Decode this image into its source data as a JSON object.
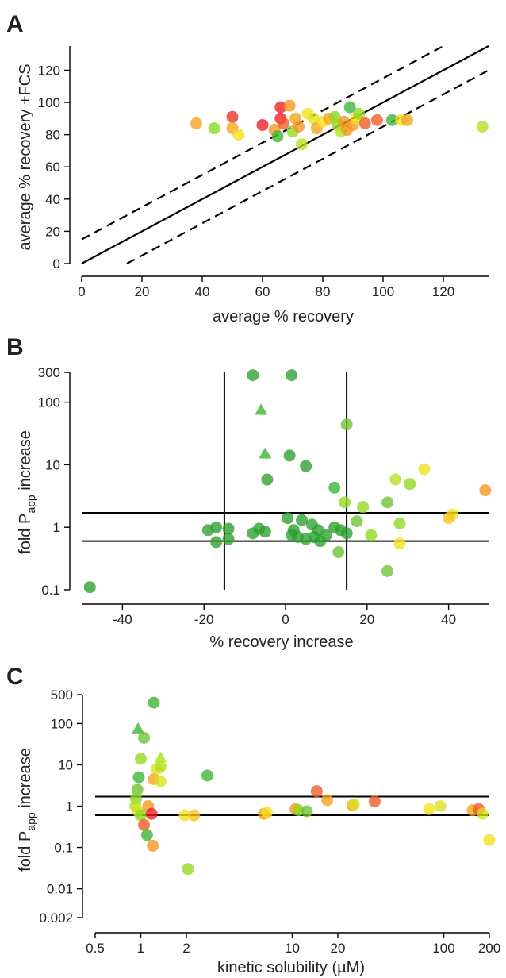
{
  "chart_data": [
    {
      "panel": "A",
      "type": "scatter",
      "xlabel": "average % recovery",
      "ylabel": "average % recovery +FCS",
      "xlim": [
        0,
        135
      ],
      "ylim": [
        0,
        135
      ],
      "xticks": [
        0,
        20,
        40,
        60,
        80,
        100,
        120
      ],
      "yticks": [
        0,
        20,
        40,
        60,
        80,
        100,
        120
      ],
      "lines": [
        {
          "style": "solid",
          "x": [
            0,
            135
          ],
          "y": [
            0,
            135
          ]
        },
        {
          "style": "dashed",
          "x": [
            0,
            120
          ],
          "y": [
            15,
            135
          ]
        },
        {
          "style": "dashed",
          "x": [
            15,
            135
          ],
          "y": [
            0,
            120
          ]
        }
      ],
      "points": [
        {
          "x": 38,
          "y": 87,
          "color": "#f7a21b"
        },
        {
          "x": 44,
          "y": 84,
          "color": "#8ed81e"
        },
        {
          "x": 50,
          "y": 91,
          "color": "#ee3124"
        },
        {
          "x": 50,
          "y": 84,
          "color": "#f7a21b"
        },
        {
          "x": 52,
          "y": 80,
          "color": "#f4e21a"
        },
        {
          "x": 60,
          "y": 86,
          "color": "#ee1c24"
        },
        {
          "x": 64,
          "y": 83,
          "color": "#f7941d"
        },
        {
          "x": 65,
          "y": 79,
          "color": "#3cb534"
        },
        {
          "x": 66,
          "y": 97,
          "color": "#ee1c24"
        },
        {
          "x": 66,
          "y": 90,
          "color": "#ee1c24"
        },
        {
          "x": 67,
          "y": 87,
          "color": "#f15a24"
        },
        {
          "x": 69,
          "y": 98,
          "color": "#f7941d"
        },
        {
          "x": 70,
          "y": 82,
          "color": "#8ed81e"
        },
        {
          "x": 71,
          "y": 90,
          "color": "#f7a21b"
        },
        {
          "x": 72,
          "y": 85,
          "color": "#f7941d"
        },
        {
          "x": 73,
          "y": 74,
          "color": "#b5e01e"
        },
        {
          "x": 75,
          "y": 93,
          "color": "#f4e21a"
        },
        {
          "x": 77,
          "y": 90,
          "color": "#d9e31c"
        },
        {
          "x": 78,
          "y": 84,
          "color": "#f7a21b"
        },
        {
          "x": 80,
          "y": 88,
          "color": "#f4e21a"
        },
        {
          "x": 82,
          "y": 90,
          "color": "#f7a21b"
        },
        {
          "x": 84,
          "y": 91,
          "color": "#8ed81e"
        },
        {
          "x": 85,
          "y": 86,
          "color": "#8ed81e"
        },
        {
          "x": 86,
          "y": 82,
          "color": "#b5e01e"
        },
        {
          "x": 87,
          "y": 88,
          "color": "#f7941d"
        },
        {
          "x": 88,
          "y": 83,
          "color": "#f7941d"
        },
        {
          "x": 89,
          "y": 97,
          "color": "#3cb534"
        },
        {
          "x": 90,
          "y": 86,
          "color": "#f7941d"
        },
        {
          "x": 91,
          "y": 90,
          "color": "#f4e21a"
        },
        {
          "x": 92,
          "y": 93,
          "color": "#8ed81e"
        },
        {
          "x": 94,
          "y": 87,
          "color": "#f15a24"
        },
        {
          "x": 98,
          "y": 89,
          "color": "#f15a24"
        },
        {
          "x": 103,
          "y": 89,
          "color": "#3cb534"
        },
        {
          "x": 106,
          "y": 89,
          "color": "#f4e21a"
        },
        {
          "x": 108,
          "y": 89,
          "color": "#f7a21b"
        },
        {
          "x": 133,
          "y": 85,
          "color": "#b5e01e"
        }
      ]
    },
    {
      "panel": "B",
      "type": "scatter",
      "xlabel": "% recovery increase",
      "ylabel": "fold P",
      "ylabel_sub": "app",
      "ylabel_rest": " increase",
      "yscale": "log",
      "xlim": [
        -50,
        50
      ],
      "ylim": [
        0.1,
        300
      ],
      "xticks": [
        -40,
        -20,
        0,
        20,
        40
      ],
      "yticks": [
        {
          "v": 0.1,
          "label": "0.1"
        },
        {
          "v": 1,
          "label": "1"
        },
        {
          "v": 10,
          "label": "10"
        },
        {
          "v": 100,
          "label": "100"
        },
        {
          "v": 300,
          "label": "300"
        }
      ],
      "vlines": [
        -15,
        15
      ],
      "hlines": [
        1.7,
        0.6
      ],
      "points": [
        {
          "x": -48,
          "y": 0.11,
          "color": "#2ca02c",
          "shape": "circle"
        },
        {
          "x": -8,
          "y": 270,
          "color": "#2ca02c",
          "shape": "circle"
        },
        {
          "x": 1.5,
          "y": 270,
          "color": "#2ca02c",
          "shape": "circle"
        },
        {
          "x": -6,
          "y": 75,
          "color": "#3cb534",
          "shape": "triangle"
        },
        {
          "x": -5,
          "y": 15,
          "color": "#3cb534",
          "shape": "triangle"
        },
        {
          "x": 1,
          "y": 14,
          "color": "#2ca02c",
          "shape": "circle"
        },
        {
          "x": 15,
          "y": 44,
          "color": "#6cc230",
          "shape": "circle"
        },
        {
          "x": 5,
          "y": 9.5,
          "color": "#2ca02c",
          "shape": "circle"
        },
        {
          "x": -4.5,
          "y": 5.8,
          "color": "#2ca02c",
          "shape": "circle"
        },
        {
          "x": 12,
          "y": 4.3,
          "color": "#3cb534",
          "shape": "circle"
        },
        {
          "x": 34,
          "y": 8.5,
          "color": "#f4e21a",
          "shape": "circle"
        },
        {
          "x": 49,
          "y": 3.9,
          "color": "#f7941d",
          "shape": "circle"
        },
        {
          "x": 27,
          "y": 5.8,
          "color": "#b5e01e",
          "shape": "circle"
        },
        {
          "x": 30.5,
          "y": 4.9,
          "color": "#8ed81e",
          "shape": "circle"
        },
        {
          "x": 14.5,
          "y": 2.5,
          "color": "#8ed81e",
          "shape": "circle"
        },
        {
          "x": 19,
          "y": 2.1,
          "color": "#8ed81e",
          "shape": "circle"
        },
        {
          "x": 25,
          "y": 2.5,
          "color": "#6cc230",
          "shape": "circle"
        },
        {
          "x": 17.5,
          "y": 1.25,
          "color": "#6cc230",
          "shape": "circle"
        },
        {
          "x": 41,
          "y": 1.6,
          "color": "#f4e21a",
          "shape": "circle"
        },
        {
          "x": 40,
          "y": 1.4,
          "color": "#f7c21b",
          "shape": "circle"
        },
        {
          "x": 28,
          "y": 1.15,
          "color": "#8ed81e",
          "shape": "circle"
        },
        {
          "x": 28,
          "y": 0.55,
          "color": "#f4e21a",
          "shape": "circle"
        },
        {
          "x": 21,
          "y": 0.75,
          "color": "#8ed81e",
          "shape": "circle"
        },
        {
          "x": 25,
          "y": 0.2,
          "color": "#6cc230",
          "shape": "circle"
        },
        {
          "x": 13,
          "y": 0.4,
          "color": "#6cc230",
          "shape": "circle"
        },
        {
          "x": -19,
          "y": 0.9,
          "color": "#2ca02c",
          "shape": "circle"
        },
        {
          "x": -17,
          "y": 1.0,
          "color": "#2ca02c",
          "shape": "circle"
        },
        {
          "x": -14,
          "y": 0.95,
          "color": "#2ca02c",
          "shape": "circle"
        },
        {
          "x": -17,
          "y": 0.58,
          "color": "#2ca02c",
          "shape": "circle"
        },
        {
          "x": -14,
          "y": 0.65,
          "color": "#2ca02c",
          "shape": "circle"
        },
        {
          "x": -8,
          "y": 0.8,
          "color": "#2ca02c",
          "shape": "circle"
        },
        {
          "x": -6.5,
          "y": 0.95,
          "color": "#2ca02c",
          "shape": "circle"
        },
        {
          "x": -5,
          "y": 0.85,
          "color": "#2ca02c",
          "shape": "circle"
        },
        {
          "x": 0.5,
          "y": 1.4,
          "color": "#2ca02c",
          "shape": "circle"
        },
        {
          "x": 2,
          "y": 0.9,
          "color": "#2ca02c",
          "shape": "circle"
        },
        {
          "x": 4,
          "y": 1.3,
          "color": "#2ca02c",
          "shape": "circle"
        },
        {
          "x": 1.5,
          "y": 0.75,
          "color": "#2ca02c",
          "shape": "circle"
        },
        {
          "x": 3,
          "y": 0.7,
          "color": "#2ca02c",
          "shape": "circle"
        },
        {
          "x": 5,
          "y": 0.65,
          "color": "#2ca02c",
          "shape": "circle"
        },
        {
          "x": 6.5,
          "y": 1.1,
          "color": "#2ca02c",
          "shape": "circle"
        },
        {
          "x": 8,
          "y": 0.9,
          "color": "#2ca02c",
          "shape": "circle"
        },
        {
          "x": 8.5,
          "y": 0.6,
          "color": "#2ca02c",
          "shape": "circle"
        },
        {
          "x": 10,
          "y": 0.75,
          "color": "#2ca02c",
          "shape": "circle"
        },
        {
          "x": 12,
          "y": 1.0,
          "color": "#2ca02c",
          "shape": "circle"
        },
        {
          "x": 13.5,
          "y": 0.9,
          "color": "#2ca02c",
          "shape": "circle"
        },
        {
          "x": 15,
          "y": 0.8,
          "color": "#2ca02c",
          "shape": "circle"
        },
        {
          "x": 7,
          "y": 0.7,
          "color": "#2ca02c",
          "shape": "circle"
        }
      ]
    },
    {
      "panel": "C",
      "type": "scatter",
      "xlabel": "kinetic solubility (µM)",
      "ylabel": "fold P",
      "ylabel_sub": "app",
      "ylabel_rest": " increase",
      "xscale": "log",
      "yscale": "log",
      "xlim": [
        0.5,
        200
      ],
      "ylim": [
        0.002,
        500
      ],
      "xticks": [
        {
          "v": 0.5,
          "label": "0.5"
        },
        {
          "v": 1,
          "label": "1"
        },
        {
          "v": 2,
          "label": "2"
        },
        {
          "v": 10,
          "label": "10"
        },
        {
          "v": 20,
          "label": "20"
        },
        {
          "v": 100,
          "label": "100"
        },
        {
          "v": 200,
          "label": "200"
        }
      ],
      "yticks": [
        {
          "v": 0.002,
          "label": "0.002"
        },
        {
          "v": 0.01,
          "label": "0.01"
        },
        {
          "v": 0.1,
          "label": "0.1"
        },
        {
          "v": 1,
          "label": "1"
        },
        {
          "v": 10,
          "label": "10"
        },
        {
          "v": 100,
          "label": "100"
        },
        {
          "v": 500,
          "label": "500"
        }
      ],
      "hlines": [
        1.7,
        0.6
      ],
      "points": [
        {
          "x": 0.96,
          "y": 75,
          "color": "#3cb534",
          "shape": "triangle"
        },
        {
          "x": 1.35,
          "y": 15,
          "color": "#b5e01e",
          "shape": "triangle"
        },
        {
          "x": 1.22,
          "y": 320,
          "color": "#3cb534",
          "shape": "circle"
        },
        {
          "x": 1.05,
          "y": 45,
          "color": "#6cc230",
          "shape": "circle"
        },
        {
          "x": 1.0,
          "y": 14,
          "color": "#8ed81e",
          "shape": "circle"
        },
        {
          "x": 0.97,
          "y": 5,
          "color": "#3cb534",
          "shape": "circle"
        },
        {
          "x": 0.95,
          "y": 2.5,
          "color": "#6cc230",
          "shape": "circle"
        },
        {
          "x": 0.93,
          "y": 1.5,
          "color": "#8ed81e",
          "shape": "circle"
        },
        {
          "x": 0.92,
          "y": 1.0,
          "color": "#b5e01e",
          "shape": "circle"
        },
        {
          "x": 0.96,
          "y": 0.75,
          "color": "#d9e31c",
          "shape": "circle"
        },
        {
          "x": 1.0,
          "y": 0.6,
          "color": "#8ed81e",
          "shape": "circle"
        },
        {
          "x": 1.05,
          "y": 0.35,
          "color": "#f15a24",
          "shape": "circle"
        },
        {
          "x": 1.1,
          "y": 0.2,
          "color": "#3cb534",
          "shape": "circle"
        },
        {
          "x": 1.12,
          "y": 1.0,
          "color": "#f7941d",
          "shape": "circle"
        },
        {
          "x": 1.18,
          "y": 0.65,
          "color": "#ee1c24",
          "shape": "circle"
        },
        {
          "x": 1.2,
          "y": 0.11,
          "color": "#f7941d",
          "shape": "circle"
        },
        {
          "x": 1.22,
          "y": 4.5,
          "color": "#f7a21b",
          "shape": "circle"
        },
        {
          "x": 1.28,
          "y": 8,
          "color": "#d9e31c",
          "shape": "circle"
        },
        {
          "x": 1.35,
          "y": 9,
          "color": "#b5e01e",
          "shape": "circle"
        },
        {
          "x": 1.35,
          "y": 4,
          "color": "#d9e31c",
          "shape": "circle"
        },
        {
          "x": 1.95,
          "y": 0.6,
          "color": "#f4e21a",
          "shape": "circle"
        },
        {
          "x": 2.05,
          "y": 0.03,
          "color": "#8ed81e",
          "shape": "circle"
        },
        {
          "x": 2.25,
          "y": 0.6,
          "color": "#f7c21b",
          "shape": "circle"
        },
        {
          "x": 2.75,
          "y": 5.5,
          "color": "#3cb534",
          "shape": "circle"
        },
        {
          "x": 6.5,
          "y": 0.65,
          "color": "#f7941d",
          "shape": "circle"
        },
        {
          "x": 6.8,
          "y": 0.7,
          "color": "#f4e21a",
          "shape": "circle"
        },
        {
          "x": 10.5,
          "y": 0.85,
          "color": "#f7941d",
          "shape": "circle"
        },
        {
          "x": 11,
          "y": 0.8,
          "color": "#8ed81e",
          "shape": "circle"
        },
        {
          "x": 12.5,
          "y": 0.75,
          "color": "#6cc230",
          "shape": "circle"
        },
        {
          "x": 14.5,
          "y": 2.3,
          "color": "#f15a24",
          "shape": "circle"
        },
        {
          "x": 17,
          "y": 1.4,
          "color": "#f7a21b",
          "shape": "circle"
        },
        {
          "x": 25,
          "y": 1.05,
          "color": "#f7941d",
          "shape": "circle"
        },
        {
          "x": 25.5,
          "y": 1.1,
          "color": "#d9e31c",
          "shape": "circle"
        },
        {
          "x": 35,
          "y": 1.3,
          "color": "#f15a24",
          "shape": "circle"
        },
        {
          "x": 80,
          "y": 0.85,
          "color": "#f4e21a",
          "shape": "circle"
        },
        {
          "x": 95,
          "y": 1.0,
          "color": "#d9e31c",
          "shape": "circle"
        },
        {
          "x": 155,
          "y": 0.8,
          "color": "#f7a21b",
          "shape": "circle"
        },
        {
          "x": 170,
          "y": 0.85,
          "color": "#f15a24",
          "shape": "circle"
        },
        {
          "x": 180,
          "y": 0.65,
          "color": "#d9e31c",
          "shape": "circle"
        },
        {
          "x": 200,
          "y": 0.15,
          "color": "#f4e21a",
          "shape": "circle"
        }
      ]
    }
  ]
}
